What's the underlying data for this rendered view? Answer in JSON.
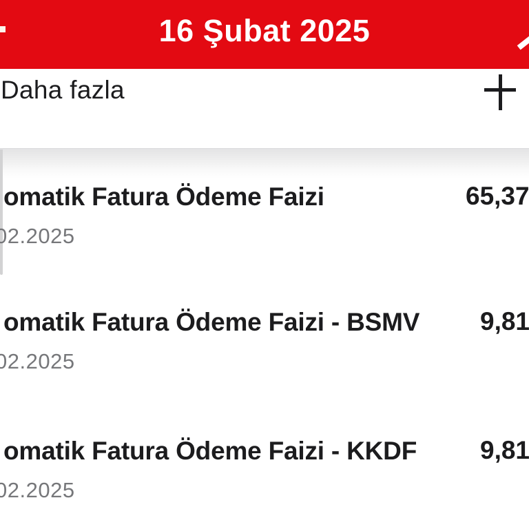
{
  "header": {
    "title": "16 Şubat 2025",
    "left_icon": "cropped-icon-fragment",
    "right_icon": "cropped-icon-fragment"
  },
  "toolbar": {
    "more_label": "Daha fazla",
    "add_icon": "plus-icon"
  },
  "transactions": [
    {
      "title": "omatik Fatura Ödeme Faizi",
      "date": "02.2025",
      "amount": "65,37"
    },
    {
      "title": "omatik Fatura Ödeme Faizi - BSMV",
      "date": "02.2025",
      "amount": "9,81"
    },
    {
      "title": "omatik Fatura Ödeme Faizi - KKDF",
      "date": "02.2025",
      "amount": "9,81"
    }
  ],
  "colors": {
    "header_red": "#e30a12",
    "header_text": "#ffffff",
    "text_dark": "#1c1c1e",
    "text_gray": "#76777a",
    "shadow_gray": "#e4e4e5",
    "scrollbar_gray": "#d2d2d3"
  }
}
